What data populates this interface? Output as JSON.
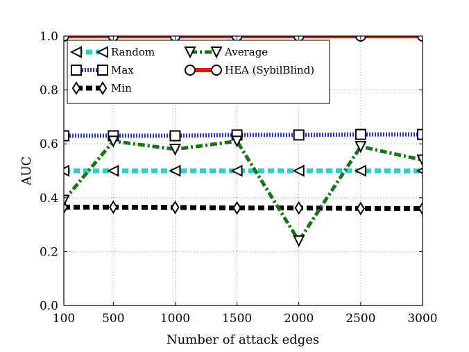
{
  "chart_data": {
    "type": "line",
    "title": "",
    "xlabel": "Number of attack edges",
    "ylabel": "AUC",
    "x": [
      100,
      500,
      1000,
      1500,
      2000,
      2500,
      3000
    ],
    "xlim": [
      100,
      3000
    ],
    "ylim": [
      0.0,
      1.0
    ],
    "xticks": [
      "100",
      "500",
      "1000",
      "1500",
      "2000",
      "2500",
      "3000"
    ],
    "yticks": [
      "0.0",
      "0.2",
      "0.4",
      "0.6",
      "0.8",
      "1.0"
    ],
    "grid": true,
    "legend_position": "top-left",
    "series": [
      {
        "name": "Random",
        "marker": "triangle-left",
        "line_style": "dashed",
        "color": "#33cccc",
        "values": [
          0.5,
          0.5,
          0.5,
          0.5,
          0.5,
          0.5,
          0.5
        ]
      },
      {
        "name": "Max",
        "marker": "square",
        "line_style": "dotted",
        "color": "#2233dd",
        "values": [
          0.63,
          0.63,
          0.63,
          0.633,
          0.633,
          0.635,
          0.635
        ]
      },
      {
        "name": "Min",
        "marker": "diamond",
        "line_style": "dashed",
        "color": "#000000",
        "values": [
          0.365,
          0.365,
          0.364,
          0.362,
          0.362,
          0.36,
          0.36
        ]
      },
      {
        "name": "Average",
        "marker": "triangle-down",
        "line_style": "dash-dot",
        "color": "#117711",
        "values": [
          0.39,
          0.61,
          0.58,
          0.61,
          0.24,
          0.59,
          0.54
        ]
      },
      {
        "name": "HEA (SybilBlind)",
        "marker": "circle",
        "line_style": "solid",
        "color": "#ee1111",
        "values": [
          1.0,
          1.0,
          1.0,
          1.0,
          1.0,
          1.0,
          1.0
        ]
      }
    ]
  }
}
